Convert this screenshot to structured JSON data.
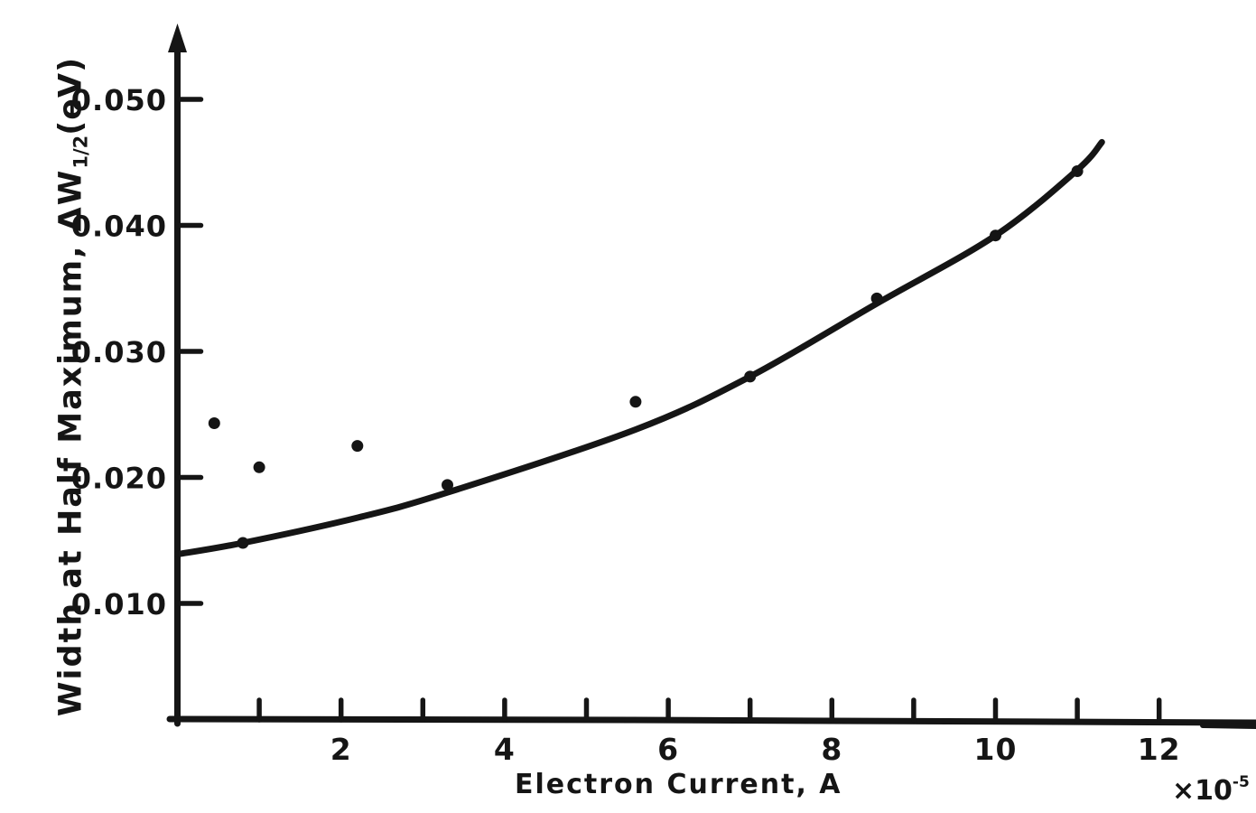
{
  "chart_data": {
    "type": "scatter",
    "xlabel": "Electron Current, A",
    "x_multiplier_base": "×10",
    "x_multiplier_exp": "-5",
    "ylabel_main": "Width at Half Maximum, ΔW",
    "ylabel_sub": "1/2",
    "ylabel_unit": "(eV)",
    "xlim": [
      0,
      13.2
    ],
    "ylim": [
      0,
      0.0557
    ],
    "x_ticks": [
      1,
      2,
      3,
      4,
      5,
      6,
      7,
      8,
      9,
      10,
      11,
      12
    ],
    "x_labeled_ticks": [
      2,
      4,
      6,
      8,
      10,
      12
    ],
    "x_tick_labels": [
      "2",
      "4",
      "6",
      "8",
      "10",
      "12"
    ],
    "y_ticks": [
      0.01,
      0.02,
      0.03,
      0.04,
      0.05
    ],
    "y_tick_labels": [
      "0.010",
      "0.020",
      "0.030",
      "0.040",
      "0.050"
    ],
    "points": [
      [
        0.45,
        0.0243
      ],
      [
        0.8,
        0.0148
      ],
      [
        1.0,
        0.0208
      ],
      [
        2.2,
        0.0225
      ],
      [
        3.3,
        0.0194
      ],
      [
        5.6,
        0.026
      ],
      [
        7.0,
        0.028
      ],
      [
        8.55,
        0.0342
      ],
      [
        10.0,
        0.0392
      ],
      [
        11.0,
        0.0443
      ]
    ],
    "fit_curve": [
      [
        0.0,
        0.0139
      ],
      [
        0.8,
        0.0148
      ],
      [
        2.2,
        0.0168
      ],
      [
        3.3,
        0.0188
      ],
      [
        5.6,
        0.0238
      ],
      [
        7.0,
        0.028
      ],
      [
        8.55,
        0.0338
      ],
      [
        10.0,
        0.0392
      ],
      [
        11.0,
        0.0444
      ],
      [
        11.3,
        0.0466
      ]
    ],
    "grid": false,
    "legend": null,
    "ink_color": "#151515",
    "background_color": "#ffffff"
  }
}
